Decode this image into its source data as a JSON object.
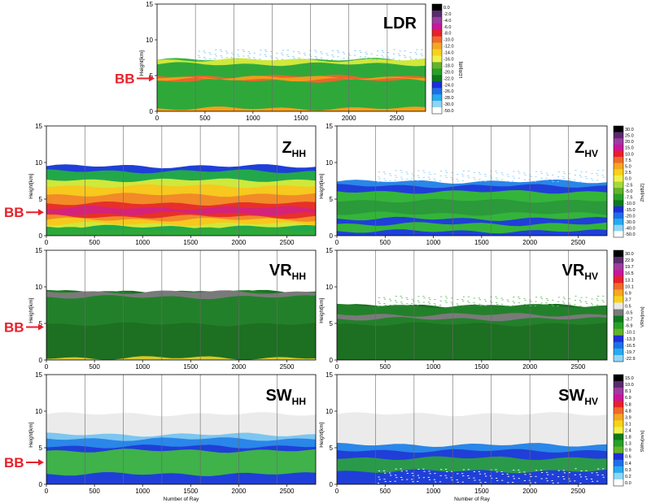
{
  "colors": {
    "bb_marker": "#e8202a",
    "gray_band": "#ebebeb"
  },
  "bb_label": "BB",
  "chart_data": [
    {
      "id": "LDR",
      "type": "heatmap",
      "title": "LDR",
      "title_sub": "",
      "ylabel": "Height[km]",
      "xlabel": "",
      "xlim": [
        0,
        2800
      ],
      "ylim": [
        0,
        15
      ],
      "xticks": [
        0,
        500,
        1000,
        1500,
        2000,
        2500
      ],
      "yticks": [
        0,
        5,
        10,
        15
      ],
      "colorbar_label": "LDR[dB]",
      "colorbar_ticks": [
        "0.0",
        "-2.0",
        "-4.0",
        "-6.0",
        "-8.0",
        "-10.0",
        "-12.0",
        "-14.0",
        "-16.0",
        "-18.0",
        "-20.0",
        "-22.0",
        "-24.0",
        "-26.0",
        "-28.0",
        "-30.0",
        "-50.0"
      ],
      "colorbar_colors": [
        "#000000",
        "#5a2a6e",
        "#9e3ba0",
        "#c8169b",
        "#e8202a",
        "#f06a2a",
        "#f5a623",
        "#f7d21a",
        "#f0f04a",
        "#63b32a",
        "#27a127",
        "#0d7a1c",
        "#1e2ed8",
        "#1f6fe8",
        "#27aaf0",
        "#8fd6f5",
        "#ffffff"
      ],
      "has_bb_marker": true,
      "bb_height_km": 4.6,
      "layers": [
        {
          "bottom": 0.0,
          "top": 7.2,
          "color": "#35b43a"
        },
        {
          "bottom": 0.0,
          "top": 6.8,
          "color": "#2fa83a"
        },
        {
          "bottom": 4.3,
          "top": 4.9,
          "color": "#e8662a"
        },
        {
          "bottom": 4.45,
          "top": 4.75,
          "color": "#f29a1c"
        },
        {
          "bottom": 6.6,
          "top": 7.2,
          "color": "#cfe83c"
        },
        {
          "bottom": 0.0,
          "top": 0.4,
          "color": "#f4a020"
        }
      ],
      "sparse": [
        {
          "bottom": 7.2,
          "top": 8.7,
          "color": "#7ec7f0"
        }
      ]
    },
    {
      "id": "ZHH",
      "type": "heatmap",
      "title": "Z",
      "title_sub": "HH",
      "ylabel": "Height[km]",
      "xlabel": "",
      "xlim": [
        0,
        2800
      ],
      "ylim": [
        0,
        15
      ],
      "xticks": [
        0,
        500,
        1000,
        1500,
        2000,
        2500
      ],
      "yticks": [
        0,
        5,
        10,
        15
      ],
      "has_bb_marker": true,
      "bb_height_km": 3.2,
      "layers": [
        {
          "bottom": 0.0,
          "top": 9.5,
          "color": "#1f3fd8"
        },
        {
          "bottom": 0.0,
          "top": 8.8,
          "color": "#22a84a"
        },
        {
          "bottom": 1.2,
          "top": 7.6,
          "color": "#cfe83c"
        },
        {
          "bottom": 1.6,
          "top": 6.8,
          "color": "#f7c81e"
        },
        {
          "bottom": 2.2,
          "top": 5.6,
          "color": "#f28a28"
        },
        {
          "bottom": 2.6,
          "top": 4.4,
          "color": "#e8302a"
        },
        {
          "bottom": 3.0,
          "top": 3.8,
          "color": "#d4237a"
        },
        {
          "bottom": 0.0,
          "top": 0.9,
          "color": "#2fa83a"
        }
      ],
      "sparse": []
    },
    {
      "id": "ZHV",
      "type": "heatmap",
      "title": "Z",
      "title_sub": "HV",
      "ylabel": "Height[km]",
      "xlabel": "",
      "xlim": [
        0,
        2800
      ],
      "ylim": [
        0,
        15
      ],
      "xticks": [
        0,
        500,
        1000,
        1500,
        2000,
        2500
      ],
      "yticks": [
        0,
        5,
        10,
        15
      ],
      "colorbar_label": "Zhv[dBZ]",
      "colorbar_ticks": [
        "30.0",
        "25.0",
        "20.0",
        "15.0",
        "10.0",
        "7.5",
        "5.0",
        "2.5",
        "0.0",
        "-2.5",
        "-5.0",
        "-7.5",
        "-10.0",
        "-15.0",
        "-20.0",
        "-30.0",
        "-40.0",
        "-50.0"
      ],
      "colorbar_colors": [
        "#000000",
        "#5a2a6e",
        "#9e3ba0",
        "#c8169b",
        "#e8202a",
        "#f06a2a",
        "#f5a623",
        "#f7d21a",
        "#f0f04a",
        "#a6d83c",
        "#63b32a",
        "#27a127",
        "#0d7a1c",
        "#1e2ed8",
        "#1f6fe8",
        "#27aaf0",
        "#8fd6f5",
        "#ffffff"
      ],
      "has_bb_marker": false,
      "layers": [
        {
          "bottom": 0.0,
          "top": 7.4,
          "color": "#2a86e8"
        },
        {
          "bottom": 0.0,
          "top": 6.8,
          "color": "#1f3fd8"
        },
        {
          "bottom": 2.3,
          "top": 6.0,
          "color": "#35b43a"
        },
        {
          "bottom": 3.0,
          "top": 4.8,
          "color": "#2a9a3a"
        },
        {
          "bottom": 0.0,
          "top": 1.6,
          "color": "#35b43a"
        },
        {
          "bottom": 0.0,
          "top": 0.6,
          "color": "#1f3fd8"
        }
      ],
      "sparse": [
        {
          "bottom": 7.4,
          "top": 9.0,
          "color": "#8fd0f2"
        }
      ]
    },
    {
      "id": "VRHH",
      "type": "heatmap",
      "title": "VR",
      "title_sub": "HH",
      "ylabel": "Height[km]",
      "xlabel": "",
      "xlim": [
        0,
        2800
      ],
      "ylim": [
        0,
        15
      ],
      "xticks": [
        0,
        500,
        1000,
        1500,
        2000,
        2500
      ],
      "yticks": [
        0,
        5,
        10,
        15
      ],
      "has_bb_marker": true,
      "bb_height_km": 4.5,
      "layers": [
        {
          "bottom": 0.0,
          "top": 9.3,
          "color": "#1d6f22"
        },
        {
          "bottom": 4.9,
          "top": 9.3,
          "color": "#23802a"
        },
        {
          "bottom": 8.6,
          "top": 9.3,
          "color": "#7a7a7a"
        },
        {
          "bottom": 0.0,
          "top": 0.3,
          "color": "#d8c82a"
        }
      ],
      "sparse": []
    },
    {
      "id": "VRHV",
      "type": "heatmap",
      "title": "VR",
      "title_sub": "HV",
      "ylabel": "Height[km]",
      "xlabel": "",
      "xlim": [
        0,
        2800
      ],
      "ylim": [
        0,
        15
      ],
      "xticks": [
        0,
        500,
        1000,
        1500,
        2000,
        2500
      ],
      "yticks": [
        0,
        5,
        10,
        15
      ],
      "colorbar_label": "VRhv[m/s]",
      "colorbar_ticks": [
        "30.0",
        "22.9",
        "19.7",
        "16.5",
        "13.1",
        "10.1",
        "6.9",
        "3.7",
        "0.5",
        "-0.5",
        "-3.7",
        "-6.9",
        "-10.1",
        "-13.3",
        "-16.5",
        "-19.7",
        "-22.9"
      ],
      "colorbar_colors": [
        "#000000",
        "#5a2a6e",
        "#9e3ba0",
        "#c8169b",
        "#e8202a",
        "#f06a2a",
        "#f5a623",
        "#f7d21a",
        "#e8e8e8",
        "#7a7a7a",
        "#0d7a1c",
        "#27a127",
        "#63b32a",
        "#1e2ed8",
        "#1f6fe8",
        "#27aaf0",
        "#8fd6f5"
      ],
      "has_bb_marker": false,
      "layers": [
        {
          "bottom": 0.0,
          "top": 7.4,
          "color": "#1d6f22"
        },
        {
          "bottom": 4.9,
          "top": 7.4,
          "color": "#23802a"
        },
        {
          "bottom": 5.6,
          "top": 6.2,
          "color": "#7a7a7a"
        }
      ],
      "sparse": [
        {
          "bottom": 7.4,
          "top": 8.8,
          "color": "#6cbf6c"
        }
      ]
    },
    {
      "id": "SWHH",
      "type": "heatmap",
      "title": "SW",
      "title_sub": "HH",
      "ylabel": "Height[km]",
      "xlabel": "Number of Ray",
      "xlim": [
        0,
        2800
      ],
      "ylim": [
        0,
        15
      ],
      "xticks": [
        0,
        500,
        1000,
        1500,
        2000,
        2500
      ],
      "yticks": [
        0,
        5,
        10,
        15
      ],
      "has_bb_marker": true,
      "bb_height_km": 3.0,
      "layers": [
        {
          "bottom": 0.0,
          "top": 9.6,
          "color": "#ebebeb"
        },
        {
          "bottom": 0.0,
          "top": 6.8,
          "color": "#7cc6f0"
        },
        {
          "bottom": 0.0,
          "top": 6.2,
          "color": "#2a86e8"
        },
        {
          "bottom": 0.0,
          "top": 5.2,
          "color": "#1f3fd8"
        },
        {
          "bottom": 0.0,
          "top": 4.6,
          "color": "#3fb24a"
        },
        {
          "bottom": 0.0,
          "top": 1.4,
          "color": "#1f3fd8"
        }
      ],
      "sparse": []
    },
    {
      "id": "SWHV",
      "type": "heatmap",
      "title": "SW",
      "title_sub": "HV",
      "ylabel": "Height[km]",
      "xlabel": "Number of Ray",
      "xlim": [
        0,
        2800
      ],
      "ylim": [
        0,
        15
      ],
      "xticks": [
        0,
        500,
        1000,
        1500,
        2000,
        2500
      ],
      "yticks": [
        0,
        5,
        10,
        15
      ],
      "colorbar_label": "SWhv[m/s]",
      "colorbar_ticks": [
        "15.0",
        "10.0",
        "8.1",
        "6.9",
        "5.8",
        "4.8",
        "3.9",
        "3.1",
        "2.4",
        "1.8",
        "1.3",
        "0.9",
        "0.6",
        "0.4",
        "0.3",
        "0.2",
        "0.0"
      ],
      "colorbar_colors": [
        "#000000",
        "#5a2a6e",
        "#9e3ba0",
        "#c8169b",
        "#e8202a",
        "#f06a2a",
        "#f5a623",
        "#f7d21a",
        "#f0f04a",
        "#0d7a1c",
        "#27a127",
        "#63b32a",
        "#1e2ed8",
        "#1f6fe8",
        "#27aaf0",
        "#8fd6f5",
        "#ffffff"
      ],
      "has_bb_marker": false,
      "layers": [
        {
          "bottom": 0.0,
          "top": 9.6,
          "color": "#ebebeb"
        },
        {
          "bottom": 0.0,
          "top": 5.4,
          "color": "#2a86e8"
        },
        {
          "bottom": 0.0,
          "top": 4.6,
          "color": "#1f3fd8"
        },
        {
          "bottom": 0.8,
          "top": 3.6,
          "color": "#2a9a4a"
        },
        {
          "bottom": 0.0,
          "top": 1.8,
          "color": "#1f3fd8"
        }
      ],
      "sparse": [
        {
          "bottom": 0.2,
          "top": 2.2,
          "color": "#ffffff"
        }
      ]
    }
  ]
}
